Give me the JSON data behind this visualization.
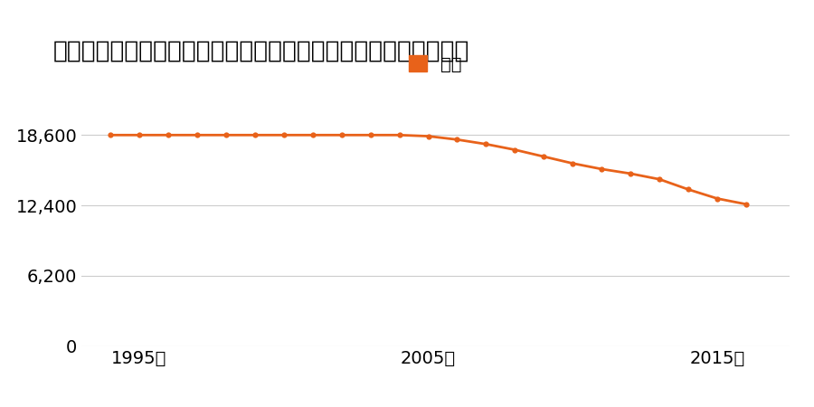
{
  "title": "山形県北村山郡大石田町大字大石田字東町丙１０３番の地価推移",
  "legend_label": "価格",
  "line_color": "#e8621a",
  "marker_color": "#e8621a",
  "background_color": "#ffffff",
  "grid_color": "#cccccc",
  "years": [
    1994,
    1995,
    1996,
    1997,
    1998,
    1999,
    2000,
    2001,
    2002,
    2003,
    2004,
    2005,
    2006,
    2007,
    2008,
    2009,
    2010,
    2011,
    2012,
    2013,
    2014,
    2015,
    2016
  ],
  "prices": [
    18600,
    18600,
    18600,
    18600,
    18600,
    18600,
    18600,
    18600,
    18600,
    18600,
    18600,
    18500,
    18200,
    17800,
    17300,
    16700,
    16100,
    15600,
    15200,
    14700,
    13800,
    13000,
    12500
  ],
  "yticks": [
    0,
    6200,
    12400,
    18600
  ],
  "xticks": [
    1995,
    2005,
    2015
  ],
  "xlim": [
    1993.0,
    2017.5
  ],
  "ylim": [
    0,
    20460
  ],
  "title_fontsize": 19,
  "legend_fontsize": 14,
  "tick_fontsize": 14
}
